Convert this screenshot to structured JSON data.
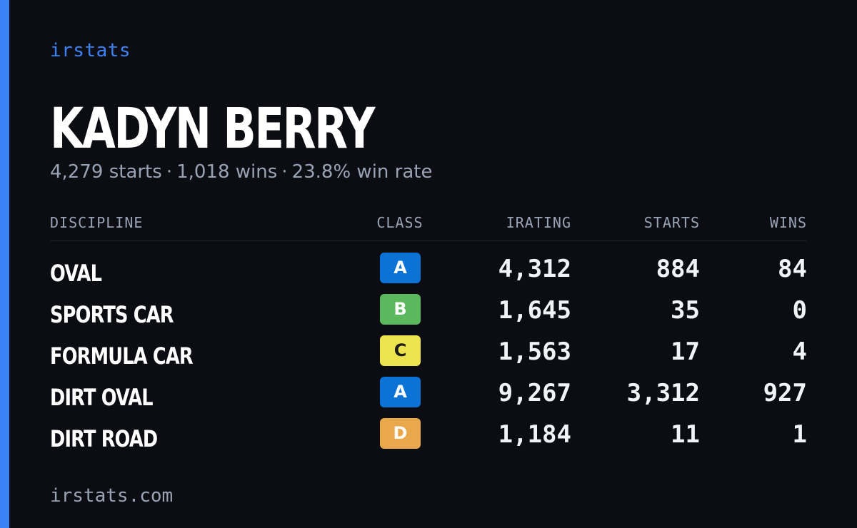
{
  "brand": "irstats",
  "driver": {
    "name": "KADYN BERRY",
    "starts": "4,279 starts",
    "wins": "1,018 wins",
    "win_rate": "23.8% win rate",
    "separator": "·"
  },
  "table": {
    "headers": {
      "discipline": "DISCIPLINE",
      "class": "CLASS",
      "irating": "IRATING",
      "starts": "STARTS",
      "wins": "WINS"
    },
    "rows": [
      {
        "discipline": "OVAL",
        "class": "A",
        "irating": "4,312",
        "starts": "884",
        "wins": "84"
      },
      {
        "discipline": "SPORTS CAR",
        "class": "B",
        "irating": "1,645",
        "starts": "35",
        "wins": "0"
      },
      {
        "discipline": "FORMULA CAR",
        "class": "C",
        "irating": "1,563",
        "starts": "17",
        "wins": "4"
      },
      {
        "discipline": "DIRT OVAL",
        "class": "A",
        "irating": "9,267",
        "starts": "3,312",
        "wins": "927"
      },
      {
        "discipline": "DIRT ROAD",
        "class": "D",
        "irating": "1,184",
        "starts": "11",
        "wins": "1"
      }
    ]
  },
  "class_colors": {
    "A": {
      "bg": "#0b72d6",
      "fg": "#ffffff"
    },
    "B": {
      "bg": "#5cb85c",
      "fg": "#ffffff"
    },
    "C": {
      "bg": "#ede44d",
      "fg": "#1a1a1a"
    },
    "D": {
      "bg": "#eaa84c",
      "fg": "#ffffff"
    }
  },
  "colors": {
    "accent": "#3b82f6",
    "background": "#0b0d13",
    "muted_text": "#9aa3b5"
  },
  "footer": "irstats.com"
}
